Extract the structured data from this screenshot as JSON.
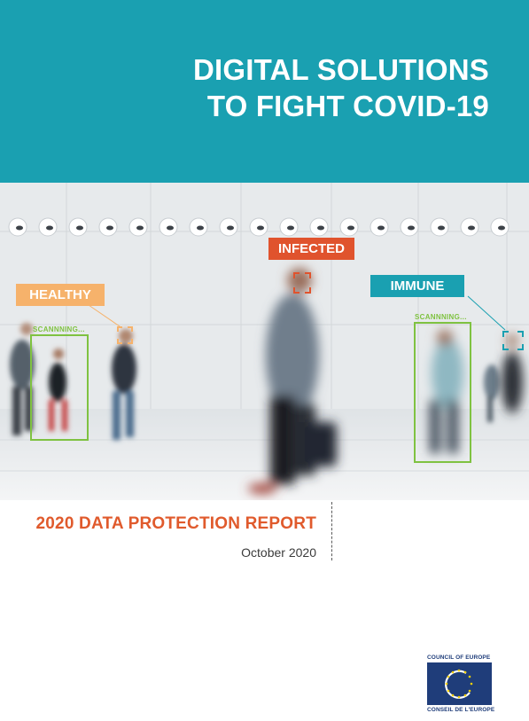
{
  "cover": {
    "title_line1": "DIGITAL SOLUTIONS",
    "title_line2": "TO FIGHT COVID-19",
    "report_title": "2020 DATA PROTECTION REPORT",
    "date": "October 2020"
  },
  "photo_tags": {
    "healthy": "HEALTHY",
    "infected": "INFECTED",
    "immune": "IMMUNE",
    "scan_left": "SCANNNING...",
    "scan_right": "SCANNNING..."
  },
  "logo": {
    "top_text": "COUNCIL OF EUROPE",
    "bottom_text": "CONSEIL DE L'EUROPE"
  },
  "colors": {
    "header": "#1aa0b1",
    "healthy": "#f6b26b",
    "infected": "#e0532d",
    "immune": "#1aa0b1",
    "scan_box": "#7fc241",
    "report_title": "#e05a2c",
    "coe_blue": "#1f3d7a"
  }
}
